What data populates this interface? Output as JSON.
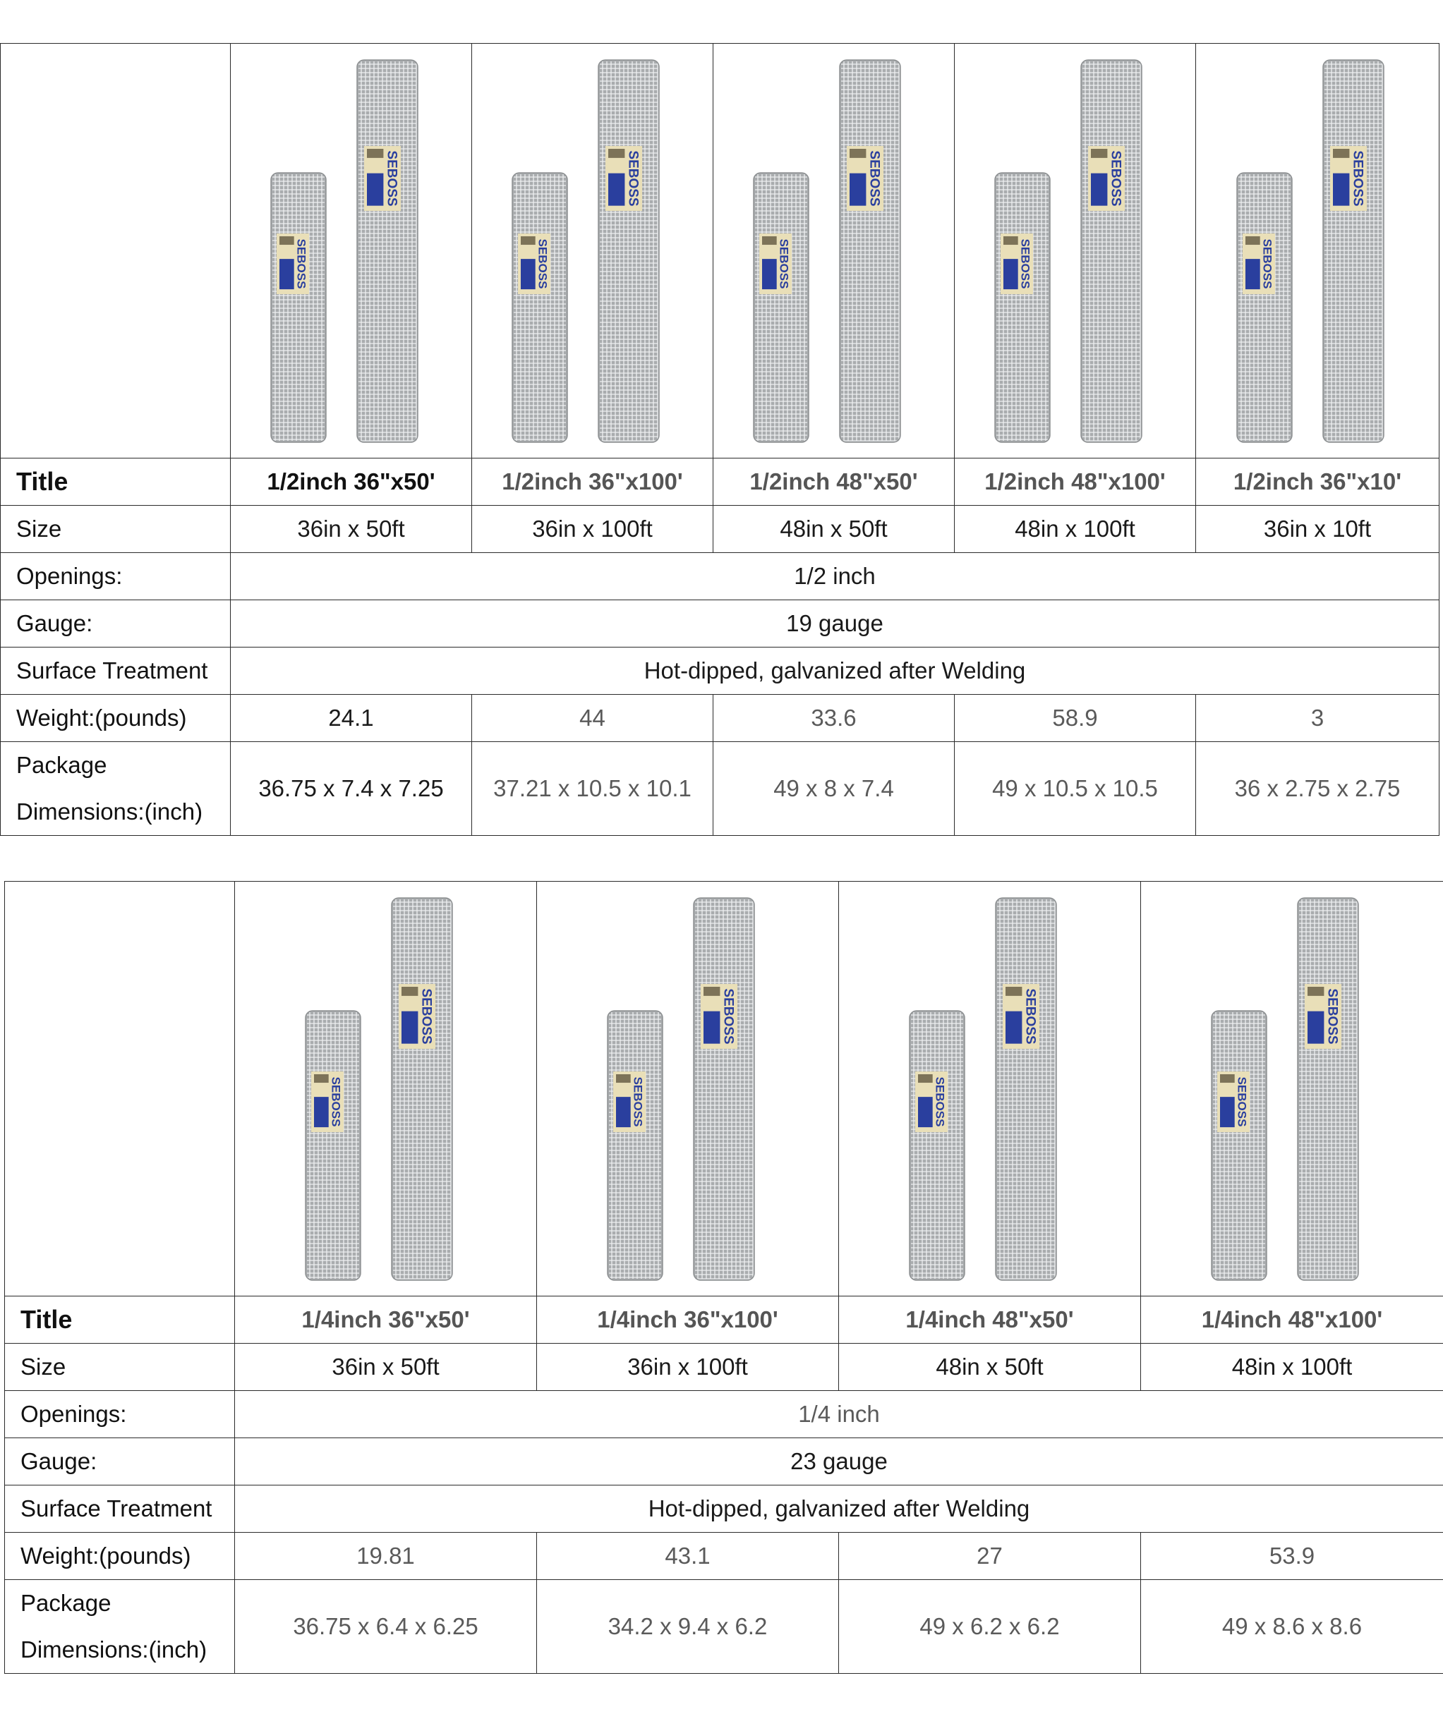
{
  "tables": [
    {
      "columns": [
        "1/2inch 36\"x50'",
        "1/2inch 36\"x100'",
        "1/2inch 48\"x50'",
        "1/2inch 48\"x100'",
        "1/2inch 36\"x10'"
      ],
      "row_labels": {
        "title": "Title",
        "size": "Size",
        "openings": "Openings:",
        "gauge": "Gauge:",
        "surface": "Surface Treatment",
        "weight": "Weight:(pounds)",
        "package_line1": "Package",
        "package_line2": "Dimensions:(inch)"
      },
      "sizes": [
        "36in x 50ft",
        "36in x 100ft",
        "48in x 50ft",
        "48in x 100ft",
        "36in x 10ft"
      ],
      "openings": "1/2 inch",
      "gauge": "19 gauge",
      "surface_treatment": "Hot-dipped, galvanized after Welding",
      "weights": [
        "24.1",
        "44",
        "33.6",
        "58.9",
        "3"
      ],
      "package_dimensions": [
        "36.75 x 7.4 x 7.25",
        "37.21 x 10.5 x 10.1",
        "49 x 8 x 7.4",
        "49 x 10.5 x 10.5",
        "36 x 2.75 x 2.75"
      ],
      "brand_label": "SEBOSS"
    },
    {
      "columns": [
        "1/4inch 36\"x50'",
        "1/4inch 36\"x100'",
        "1/4inch 48\"x50'",
        "1/4inch 48\"x100'"
      ],
      "row_labels": {
        "title": "Title",
        "size": "Size",
        "openings": "Openings:",
        "gauge": "Gauge:",
        "surface": "Surface Treatment",
        "weight": "Weight:(pounds)",
        "package_line1": "Package",
        "package_line2": "Dimensions:(inch)"
      },
      "sizes": [
        "36in x 50ft",
        "36in x 100ft",
        "48in x 50ft",
        "48in x 100ft"
      ],
      "openings": "1/4 inch",
      "gauge": "23 gauge",
      "surface_treatment": "Hot-dipped, galvanized after Welding",
      "weights": [
        "19.81",
        "43.1",
        "27",
        "53.9"
      ],
      "package_dimensions": [
        "36.75 x 6.4 x 6.25",
        "34.2 x 9.4 x 6.2",
        "49 x 6.2 x 6.2",
        "49 x 8.6 x 8.6"
      ],
      "brand_label": "SEBOSS"
    }
  ],
  "colors": {
    "mesh": "#a9acae",
    "mesh_line": "#eef0f1",
    "label_blue": "#2a3f9e",
    "label_cream": "#e9dfb8"
  },
  "icons": [
    "wire-mesh-roll-icon"
  ]
}
